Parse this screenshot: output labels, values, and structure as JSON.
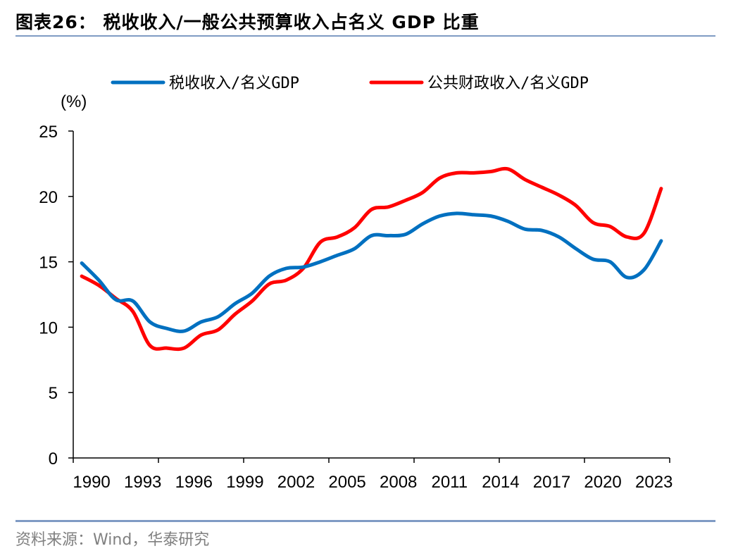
{
  "title": "图表26：  税收收入/一般公共预算收入占名义 GDP 比重",
  "source": "资料来源：Wind，华泰研究",
  "chart_data": {
    "type": "line",
    "title": "税收收入/一般公共预算收入占名义 GDP 比重",
    "xlabel": "",
    "ylabel": "(%)",
    "ylim": [
      0,
      25
    ],
    "yticks": [
      0,
      5,
      10,
      15,
      20,
      25
    ],
    "xtick_labels": [
      "1990",
      "1993",
      "1996",
      "1999",
      "2002",
      "2005",
      "2008",
      "2011",
      "2014",
      "2017",
      "2020",
      "2023"
    ],
    "grid": false,
    "legend_position": "top",
    "x": [
      1990,
      1991,
      1992,
      1993,
      1994,
      1995,
      1996,
      1997,
      1998,
      1999,
      2000,
      2001,
      2002,
      2003,
      2004,
      2005,
      2006,
      2007,
      2008,
      2009,
      2010,
      2011,
      2012,
      2013,
      2014,
      2015,
      2016,
      2017,
      2018,
      2019,
      2020,
      2021,
      2022,
      2023,
      2024
    ],
    "series": [
      {
        "name": "税收收入/名义GDP",
        "color": "#0070c0",
        "values": [
          14.9,
          13.6,
          12.1,
          12.0,
          10.4,
          9.9,
          9.7,
          10.4,
          10.8,
          11.8,
          12.6,
          13.9,
          14.5,
          14.6,
          15.0,
          15.5,
          16.0,
          17.0,
          17.0,
          17.1,
          17.9,
          18.5,
          18.7,
          18.6,
          18.5,
          18.1,
          17.5,
          17.4,
          16.9,
          16.0,
          15.2,
          15.0,
          13.8,
          14.4,
          16.6
        ]
      },
      {
        "name": "公共财政收入/名义GDP",
        "color": "#ff0000",
        "values": [
          13.9,
          13.2,
          12.2,
          11.2,
          8.6,
          8.4,
          8.4,
          9.4,
          9.8,
          11.0,
          12.0,
          13.3,
          13.6,
          14.5,
          16.5,
          16.9,
          17.6,
          19.0,
          19.2,
          19.7,
          20.3,
          21.4,
          21.8,
          21.8,
          21.9,
          22.1,
          21.3,
          20.7,
          20.1,
          19.3,
          18.0,
          17.7,
          16.9,
          17.2,
          20.6
        ]
      }
    ]
  }
}
